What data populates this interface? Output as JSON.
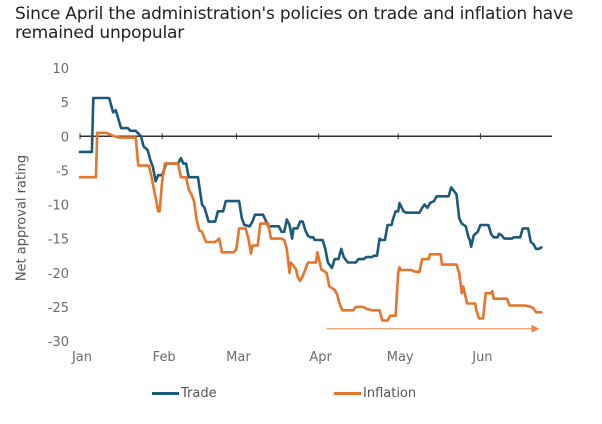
{
  "chart_data": {
    "type": "line",
    "title": "Since April the administration's policies on trade and inflation have remained unpopular",
    "xlabel": "",
    "ylabel": "Net approval rating",
    "ylim": [
      -30,
      10
    ],
    "yticks": [
      "10",
      "5",
      "0",
      "-5",
      "-10",
      "-15",
      "-20",
      "-25",
      "-30"
    ],
    "ytick_values": [
      10,
      5,
      0,
      -5,
      -10,
      -15,
      -20,
      -25,
      -30
    ],
    "xticks": [
      "Jan",
      "Feb",
      "Mar",
      "Apr",
      "May",
      "Jun"
    ],
    "xtick_days": [
      0,
      31,
      59,
      90,
      120,
      151
    ],
    "x_unit": "days since Jan 1",
    "xlim": [
      0,
      178
    ],
    "zero_line": true,
    "legend_position": "bottom",
    "annotation": "arrow spanning Apr to late Jun along bottom",
    "annotation_range_days": [
      93,
      174
    ],
    "annotation_value": -28.2,
    "series": [
      {
        "name": "Trade",
        "color": "#1b5a7a",
        "points": [
          [
            0,
            -2.3
          ],
          [
            4.5,
            -2.3
          ],
          [
            5,
            5.6
          ],
          [
            11,
            5.6
          ],
          [
            12.5,
            3.5
          ],
          [
            13.5,
            3.8
          ],
          [
            14.5,
            2.5
          ],
          [
            15.5,
            1.2
          ],
          [
            18,
            1.2
          ],
          [
            19,
            0.8
          ],
          [
            21,
            0.8
          ],
          [
            23,
            0
          ],
          [
            24,
            -1.5
          ],
          [
            25.5,
            -2
          ],
          [
            26.5,
            -3.5
          ],
          [
            27.5,
            -4.5
          ],
          [
            28.5,
            -6.6
          ],
          [
            29.5,
            -5.7
          ],
          [
            31,
            -5.7
          ],
          [
            32.5,
            -4
          ],
          [
            37,
            -4
          ],
          [
            38,
            -3.2
          ],
          [
            39,
            -4
          ],
          [
            40,
            -4
          ],
          [
            41,
            -6
          ],
          [
            44.5,
            -6
          ],
          [
            46,
            -10
          ],
          [
            47,
            -10.5
          ],
          [
            48.5,
            -12.5
          ],
          [
            51,
            -12.5
          ],
          [
            52,
            -11
          ],
          [
            54,
            -11
          ],
          [
            55,
            -9.5
          ],
          [
            60,
            -9.5
          ],
          [
            61,
            -12
          ],
          [
            62,
            -13
          ],
          [
            64,
            -13.2
          ],
          [
            65,
            -12.5
          ],
          [
            66,
            -11.5
          ],
          [
            69,
            -11.5
          ],
          [
            70,
            -12.3
          ],
          [
            71,
            -13.2
          ],
          [
            75,
            -13.2
          ],
          [
            76,
            -14
          ],
          [
            77,
            -14
          ],
          [
            78,
            -12.2
          ],
          [
            79,
            -13
          ],
          [
            80,
            -15
          ],
          [
            80.5,
            -13.5
          ],
          [
            82,
            -13.5
          ],
          [
            83,
            -12.5
          ],
          [
            84,
            -12.5
          ],
          [
            85,
            -13.8
          ],
          [
            86,
            -14.6
          ],
          [
            87,
            -14.8
          ],
          [
            88,
            -14.8
          ],
          [
            88.5,
            -15.2
          ],
          [
            91.5,
            -15.2
          ],
          [
            92.5,
            -16.5
          ],
          [
            93.5,
            -18.5
          ],
          [
            95,
            -19.3
          ],
          [
            96,
            -18
          ],
          [
            97.5,
            -18
          ],
          [
            98.5,
            -16.5
          ],
          [
            99.5,
            -17.7
          ],
          [
            101,
            -18.5
          ],
          [
            104,
            -18.5
          ],
          [
            105,
            -18
          ],
          [
            107,
            -18
          ],
          [
            108,
            -17.7
          ],
          [
            110,
            -17.7
          ],
          [
            111,
            -17.5
          ],
          [
            112,
            -17.5
          ],
          [
            113,
            -15
          ],
          [
            113.5,
            -15.2
          ],
          [
            115,
            -15.2
          ],
          [
            116,
            -13
          ],
          [
            117.5,
            -13
          ],
          [
            118,
            -12.2
          ],
          [
            119,
            -11
          ],
          [
            120,
            -11
          ],
          [
            120.5,
            -9.8
          ],
          [
            122,
            -11
          ],
          [
            123,
            -11.2
          ],
          [
            128,
            -11.2
          ],
          [
            129,
            -10.5
          ],
          [
            130,
            -10
          ],
          [
            131,
            -10.5
          ],
          [
            132,
            -9.8
          ],
          [
            133.5,
            -9.5
          ],
          [
            134.5,
            -8.8
          ],
          [
            139,
            -8.8
          ],
          [
            140,
            -7.5
          ],
          [
            141,
            -8
          ],
          [
            142,
            -8.5
          ],
          [
            143,
            -12
          ],
          [
            144,
            -12.8
          ],
          [
            145.5,
            -13.2
          ],
          [
            146.5,
            -14.8
          ],
          [
            147,
            -15.2
          ],
          [
            147.5,
            -16.2
          ],
          [
            148.5,
            -14.5
          ],
          [
            150,
            -14
          ],
          [
            151,
            -13
          ],
          [
            154,
            -13
          ],
          [
            155,
            -14.3
          ],
          [
            156,
            -14.8
          ],
          [
            157.5,
            -14.8
          ],
          [
            158,
            -14.3
          ],
          [
            159,
            -14.5
          ],
          [
            160,
            -15
          ],
          [
            163,
            -15
          ],
          [
            163.5,
            -14.8
          ],
          [
            166,
            -14.8
          ],
          [
            167,
            -13.5
          ],
          [
            169,
            -13.5
          ],
          [
            170,
            -15.5
          ],
          [
            171,
            -15.8
          ],
          [
            172,
            -16.5
          ],
          [
            173,
            -16.5
          ],
          [
            174,
            -16.3
          ]
        ]
      },
      {
        "name": "Inflation",
        "color": "#e8732a",
        "points": [
          [
            0,
            -6
          ],
          [
            6,
            -6
          ],
          [
            6.5,
            0.5
          ],
          [
            10,
            0.5
          ],
          [
            11,
            0.3
          ],
          [
            13,
            0
          ],
          [
            15,
            -0.2
          ],
          [
            21,
            -0.2
          ],
          [
            22,
            -4.3
          ],
          [
            26,
            -4.3
          ],
          [
            27,
            -6
          ],
          [
            28.5,
            -9
          ],
          [
            29.5,
            -11
          ],
          [
            30,
            -11
          ],
          [
            31,
            -6.5
          ],
          [
            32,
            -4
          ],
          [
            37,
            -4
          ],
          [
            38,
            -6
          ],
          [
            40,
            -6
          ],
          [
            41,
            -7.8
          ],
          [
            42,
            -8.5
          ],
          [
            43,
            -9.5
          ],
          [
            44,
            -12.3
          ],
          [
            45,
            -13.8
          ],
          [
            46,
            -14
          ],
          [
            47.5,
            -15.5
          ],
          [
            51,
            -15.5
          ],
          [
            52.5,
            -15
          ],
          [
            53.5,
            -17
          ],
          [
            58,
            -17
          ],
          [
            59,
            -16.5
          ],
          [
            60,
            -13.5
          ],
          [
            62.5,
            -13.5
          ],
          [
            63.5,
            -15
          ],
          [
            64.5,
            -17.2
          ],
          [
            65,
            -16
          ],
          [
            67,
            -16
          ],
          [
            68,
            -12.8
          ],
          [
            71,
            -12.8
          ],
          [
            72,
            -15
          ],
          [
            76,
            -15
          ],
          [
            77,
            -15.2
          ],
          [
            78,
            -16.5
          ],
          [
            79,
            -20
          ],
          [
            79.5,
            -18.5
          ],
          [
            80.5,
            -19
          ],
          [
            81.5,
            -19.5
          ],
          [
            82,
            -20.5
          ],
          [
            83,
            -21.2
          ],
          [
            84,
            -20.5
          ],
          [
            86,
            -18.5
          ],
          [
            89,
            -18.5
          ],
          [
            89.5,
            -17
          ],
          [
            90,
            -17.8
          ],
          [
            91,
            -19.5
          ],
          [
            93,
            -20
          ],
          [
            94,
            -22
          ],
          [
            96,
            -22.5
          ],
          [
            97,
            -23.2
          ],
          [
            98,
            -24.7
          ],
          [
            99,
            -25.5
          ],
          [
            103,
            -25.5
          ],
          [
            104,
            -25
          ],
          [
            107,
            -25
          ],
          [
            108,
            -25.3
          ],
          [
            110,
            -25.5
          ],
          [
            113,
            -25.5
          ],
          [
            114,
            -27
          ],
          [
            116,
            -27
          ],
          [
            117,
            -26.3
          ],
          [
            119,
            -26.3
          ],
          [
            120,
            -20
          ],
          [
            120.5,
            -19.2
          ],
          [
            121,
            -19.6
          ],
          [
            125,
            -19.6
          ],
          [
            126,
            -19.8
          ],
          [
            128,
            -19.9
          ],
          [
            129,
            -18
          ],
          [
            131.5,
            -18
          ],
          [
            132,
            -17.3
          ],
          [
            136,
            -17.3
          ],
          [
            136.5,
            -18.8
          ],
          [
            142,
            -18.8
          ],
          [
            143,
            -20
          ],
          [
            144,
            -23
          ],
          [
            144.5,
            -22
          ],
          [
            145,
            -22.8
          ],
          [
            146,
            -24.5
          ],
          [
            149,
            -24.5
          ],
          [
            149.5,
            -25.5
          ],
          [
            150.5,
            -26.7
          ],
          [
            152,
            -26.7
          ],
          [
            153,
            -23
          ],
          [
            155,
            -23
          ],
          [
            155.5,
            -22.7
          ],
          [
            156,
            -23.8
          ],
          [
            161,
            -23.8
          ],
          [
            162,
            -24.8
          ],
          [
            168,
            -24.8
          ],
          [
            170,
            -25
          ],
          [
            171,
            -25.2
          ],
          [
            172,
            -25.8
          ],
          [
            174,
            -25.8
          ]
        ]
      }
    ]
  },
  "legend": [
    {
      "label": "Trade",
      "color": "#1b5a7a"
    },
    {
      "label": "Inflation",
      "color": "#e8732a"
    }
  ]
}
